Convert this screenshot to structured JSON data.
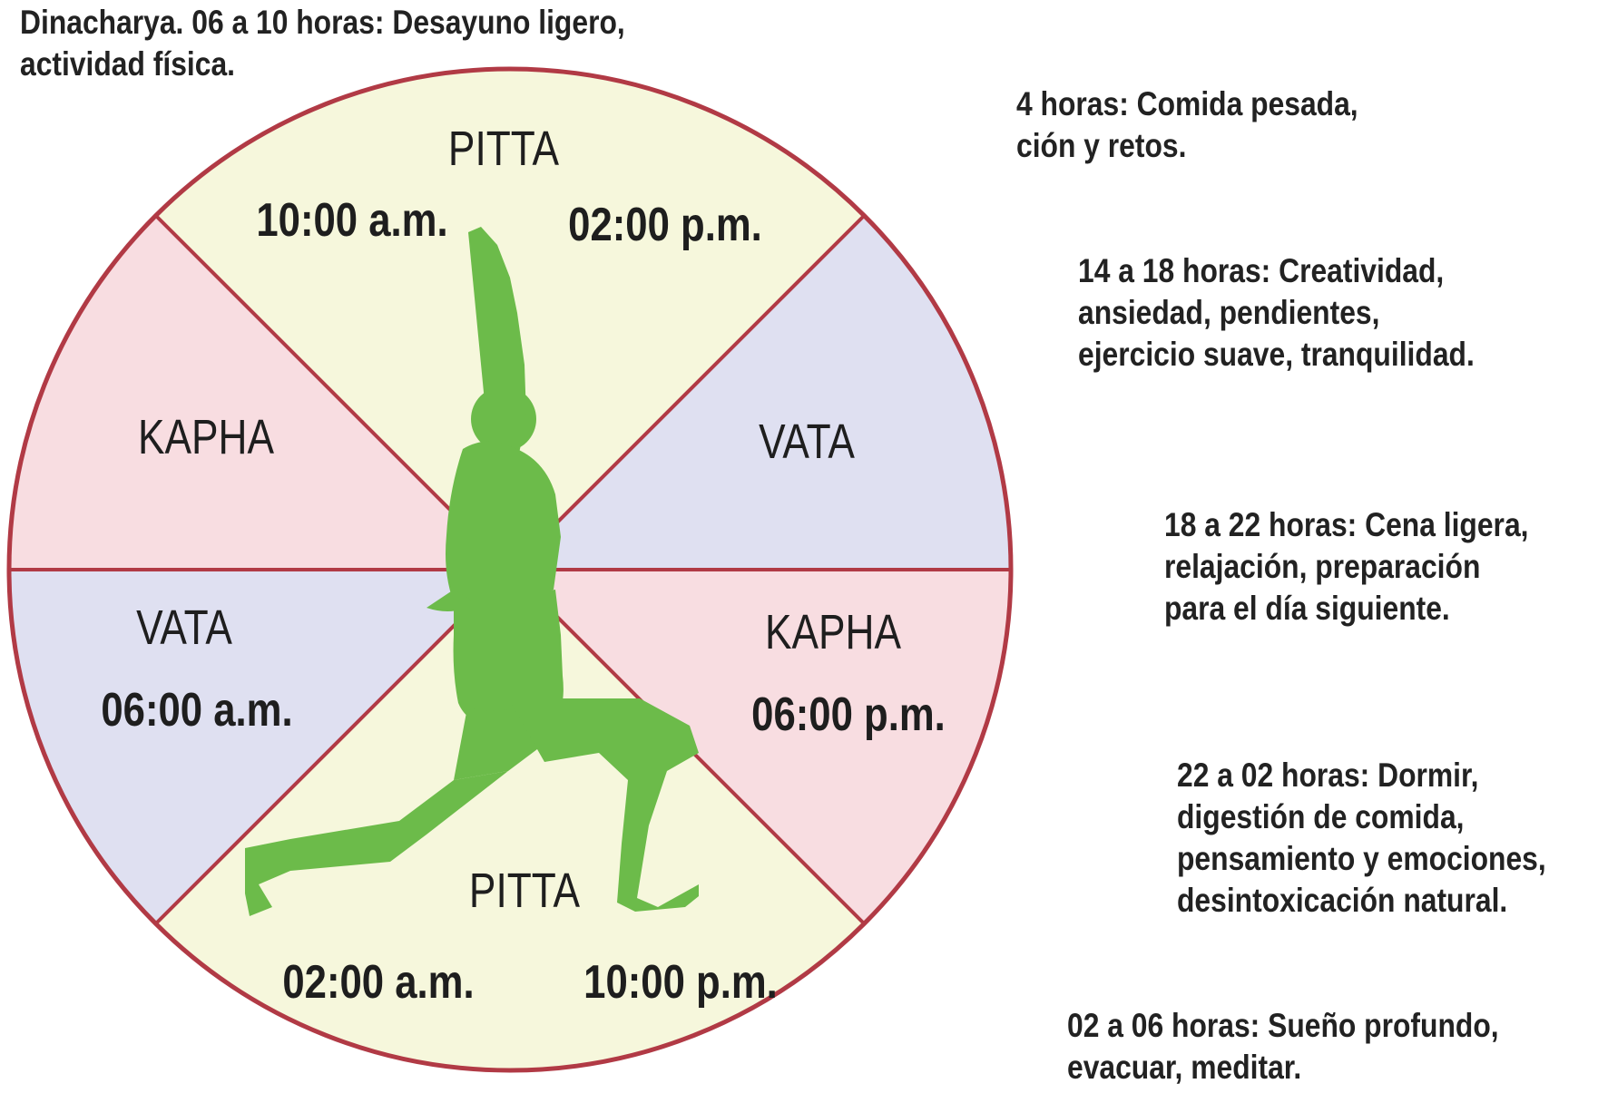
{
  "notes": [
    {
      "lines": [
        "Dinacharya. 06 a 10 horas: Desayuno ligero,",
        "actividad física."
      ]
    },
    {
      "lines": [
        "4 horas: Comida pesada,",
        "ción y retos."
      ]
    },
    {
      "lines": [
        "14 a 18 horas: Creatividad,",
        "ansiedad, pendientes,",
        "ejercicio suave, tranquilidad."
      ]
    },
    {
      "lines": [
        "18 a 22 horas: Cena ligera,",
        "relajación, preparación",
        "para el día siguiente."
      ]
    },
    {
      "lines": [
        "22 a 02 horas: Dormir,",
        "digestión de comida,",
        "pensamiento y emociones,",
        "desintoxicación natural."
      ]
    },
    {
      "lines": [
        "02 a 06 horas: Sueño profundo,",
        "evacuar, meditar."
      ]
    }
  ],
  "wheel": {
    "doshas": {
      "pitta_top": "PITTA",
      "kapha_left": "KAPHA",
      "vata_right": "VATA",
      "vata_left": "VATA",
      "kapha_right": "KAPHA",
      "pitta_bottom": "PITTA"
    },
    "times": {
      "t_10am": "10:00 a.m.",
      "t_02pm": "02:00 p.m.",
      "t_06am": "06:00 a.m.",
      "t_06pm": "06:00 p.m.",
      "t_02am": "02:00 a.m.",
      "t_10pm": "10:00 p.m."
    }
  },
  "colors": {
    "pitta": "#f6f7dc",
    "kapha": "#f8dde1",
    "vata": "#dfe0f1",
    "outline": "#b13a45",
    "figure": "#6cbb4a",
    "text": "#1e1e1e"
  },
  "icons": {
    "figure": "yoga-warrior-pose-silhouette-icon"
  }
}
